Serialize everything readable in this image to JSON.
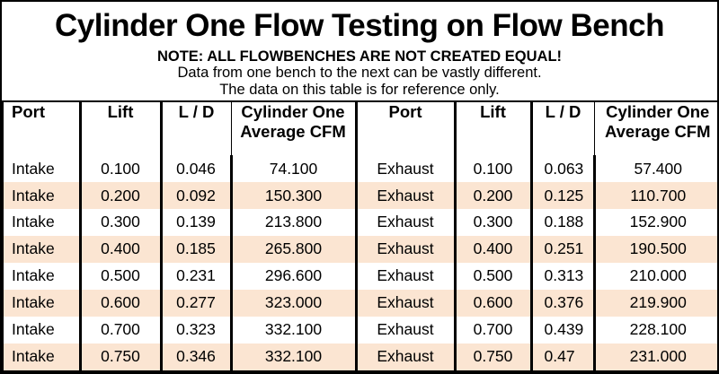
{
  "title": "Cylinder One Flow Testing on Flow Bench",
  "note": {
    "line1": "NOTE: ALL FLOWBENCHES ARE NOT CREATED EQUAL!",
    "line2": "Data from one bench to the next can be vastly different.",
    "line3": "The data on this table is for reference only."
  },
  "table": {
    "headers": [
      "Port",
      "Lift",
      "L / D",
      "Cylinder One Average CFM",
      "Port",
      "Lift",
      "L / D",
      "Cylinder One Average CFM"
    ],
    "rows": [
      [
        "Intake",
        "0.100",
        "0.046",
        "74.100",
        "Exhaust",
        "0.100",
        "0.063",
        "57.400"
      ],
      [
        "Intake",
        "0.200",
        "0.092",
        "150.300",
        "Exhaust",
        "0.200",
        "0.125",
        "110.700"
      ],
      [
        "Intake",
        "0.300",
        "0.139",
        "213.800",
        "Exhaust",
        "0.300",
        "0.188",
        "152.900"
      ],
      [
        "Intake",
        "0.400",
        "0.185",
        "265.800",
        "Exhaust",
        "0.400",
        "0.251",
        "190.500"
      ],
      [
        "Intake",
        "0.500",
        "0.231",
        "296.600",
        "Exhaust",
        "0.500",
        "0.313",
        "210.000"
      ],
      [
        "Intake",
        "0.600",
        "0.277",
        "323.000",
        "Exhaust",
        "0.600",
        "0.376",
        "219.900"
      ],
      [
        "Intake",
        "0.700",
        "0.323",
        "332.100",
        "Exhaust",
        "0.700",
        "0.439",
        "228.100"
      ],
      [
        "Intake",
        "0.750",
        "0.346",
        "332.100",
        "Exhaust",
        "0.750",
        "0.47",
        "231.000"
      ]
    ]
  },
  "colors": {
    "stripe_row": "#FBE5D2",
    "border": "#000000",
    "background": "#FFFFFF",
    "text": "#000000"
  }
}
